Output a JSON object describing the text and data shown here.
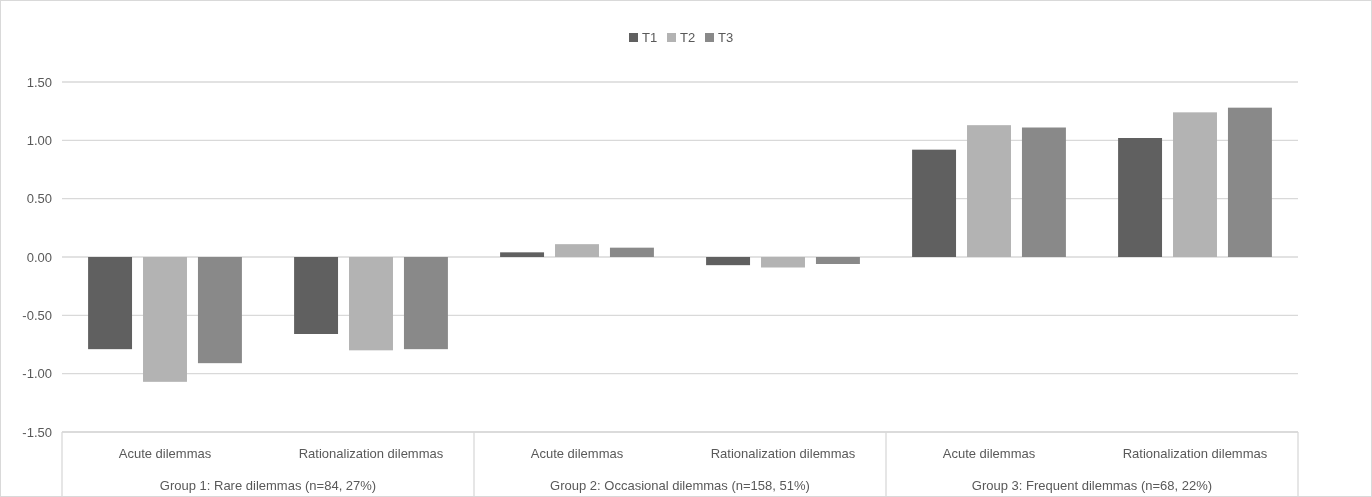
{
  "chart_data": {
    "type": "bar",
    "categories": [
      "Acute dilemmas",
      "Rationalization dilemmas",
      "Acute dilemmas",
      "Rationalization dilemmas",
      "Acute dilemmas",
      "Rationalization dilemmas"
    ],
    "annotations": [
      "Group 1: Rare dilemmas (n=84, 27%)",
      "Group 2: Occasional dilemmas (n=158, 51%)",
      "Group 3: Frequent dilemmas (n=68, 22%)"
    ],
    "series": [
      {
        "name": "T1",
        "color": "#606060",
        "values": [
          -0.79,
          -0.66,
          0.04,
          -0.07,
          0.92,
          1.02
        ]
      },
      {
        "name": "T2",
        "color": "#b3b3b3",
        "values": [
          -1.07,
          -0.8,
          0.11,
          -0.09,
          1.13,
          1.24
        ]
      },
      {
        "name": "T3",
        "color": "#898989",
        "values": [
          -0.91,
          -0.79,
          0.08,
          -0.06,
          1.11,
          1.28
        ]
      }
    ],
    "ylim": [
      -1.5,
      1.5
    ],
    "yticks": [
      {
        "value": -1.5,
        "label": "-1.50"
      },
      {
        "value": -1,
        "label": "-1.00"
      },
      {
        "value": -0.5,
        "label": "-0.50"
      },
      {
        "value": 0,
        "label": "0.00"
      },
      {
        "value": 0.5,
        "label": "0.50"
      },
      {
        "value": 1,
        "label": "1.00"
      },
      {
        "value": 1.5,
        "label": "1.50"
      }
    ],
    "grid": "y",
    "legend": "top"
  }
}
